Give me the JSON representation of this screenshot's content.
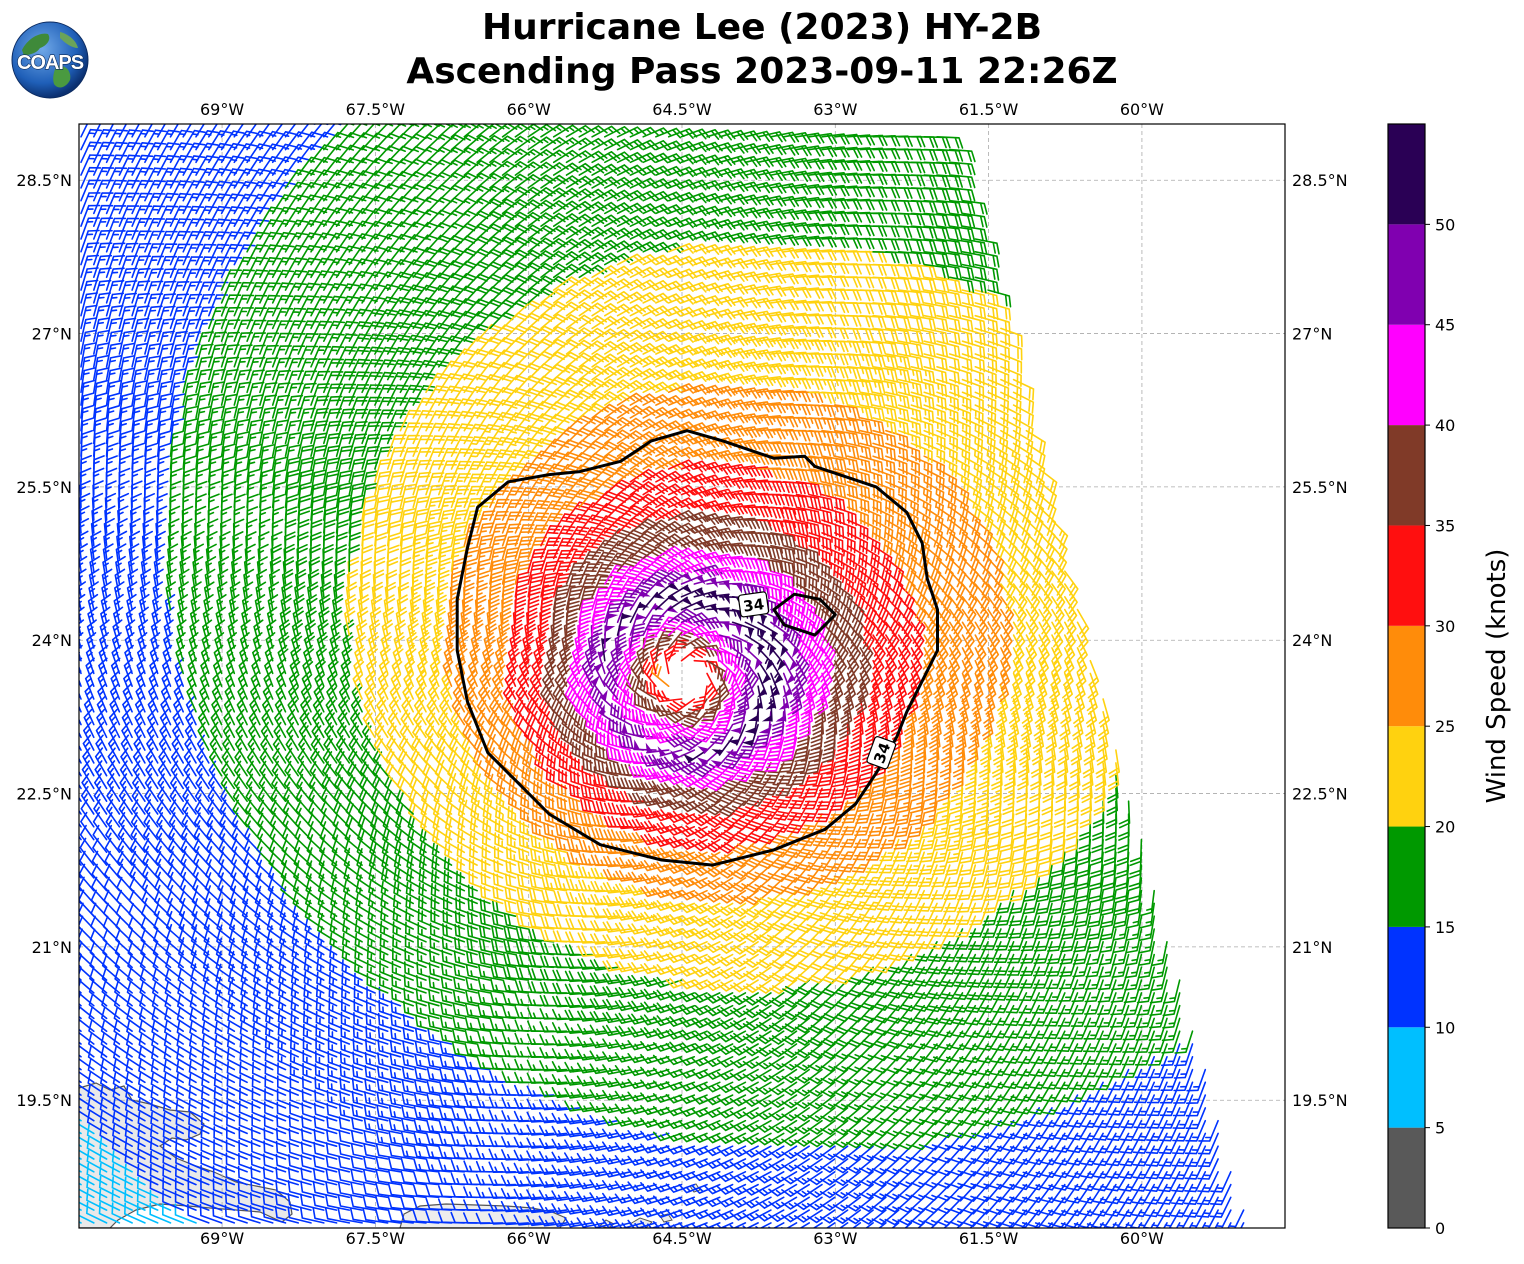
{
  "title": {
    "line1": "Hurricane Lee (2023) HY-2B",
    "line2": "Ascending Pass 2023-09-11 22:26Z"
  },
  "logo": {
    "text": "COAPS",
    "icon": "globe-icon"
  },
  "map": {
    "lon_range": [
      -70.4,
      -58.6
    ],
    "lat_range": [
      18.25,
      29.05
    ],
    "lon_ticks": [
      {
        "value": -69.0,
        "label": "69°W"
      },
      {
        "value": -67.5,
        "label": "67.5°W"
      },
      {
        "value": -66.0,
        "label": "66°W"
      },
      {
        "value": -64.5,
        "label": "64.5°W"
      },
      {
        "value": -63.0,
        "label": "63°W"
      },
      {
        "value": -61.5,
        "label": "61.5°W"
      },
      {
        "value": -60.0,
        "label": "60°W"
      }
    ],
    "lat_ticks": [
      {
        "value": 28.5,
        "label": "28.5°N"
      },
      {
        "value": 27.0,
        "label": "27°N"
      },
      {
        "value": 25.5,
        "label": "25.5°N"
      },
      {
        "value": 24.0,
        "label": "24°N"
      },
      {
        "value": 22.5,
        "label": "22.5°N"
      },
      {
        "value": 21.0,
        "label": "21°N"
      },
      {
        "value": 19.5,
        "label": "19.5°N"
      }
    ],
    "gridlines": true,
    "storm_center": {
      "lon": -64.45,
      "lat": 23.65
    },
    "swath": {
      "west_edge": [
        [
          -70.4,
          28.6
        ],
        [
          -70.4,
          18.25
        ]
      ],
      "east_edge": [
        [
          -61.9,
          28.95
        ],
        [
          -58.95,
          18.25
        ]
      ],
      "north_lat": 29.05
    },
    "contour": {
      "level": 34,
      "label": "34",
      "points": [
        [
          -64.45,
          26.05
        ],
        [
          -64.1,
          25.95
        ],
        [
          -63.6,
          25.78
        ],
        [
          -63.3,
          25.8
        ],
        [
          -63.2,
          25.7
        ],
        [
          -62.6,
          25.5
        ],
        [
          -62.3,
          25.25
        ],
        [
          -62.15,
          24.95
        ],
        [
          -62.1,
          24.6
        ],
        [
          -62.0,
          24.3
        ],
        [
          -62.0,
          23.9
        ],
        [
          -62.3,
          23.3
        ],
        [
          -62.4,
          23.05
        ],
        [
          -62.6,
          22.7
        ],
        [
          -62.8,
          22.4
        ],
        [
          -63.1,
          22.15
        ],
        [
          -63.6,
          21.95
        ],
        [
          -64.2,
          21.8
        ],
        [
          -64.7,
          21.85
        ],
        [
          -65.3,
          22.0
        ],
        [
          -65.8,
          22.3
        ],
        [
          -66.1,
          22.6
        ],
        [
          -66.4,
          22.9
        ],
        [
          -66.6,
          23.4
        ],
        [
          -66.7,
          23.9
        ],
        [
          -66.7,
          24.4
        ],
        [
          -66.6,
          24.9
        ],
        [
          -66.5,
          25.3
        ],
        [
          -66.2,
          25.55
        ],
        [
          -65.8,
          25.62
        ],
        [
          -65.5,
          25.65
        ],
        [
          -65.1,
          25.75
        ],
        [
          -64.8,
          25.95
        ],
        [
          -64.45,
          26.05
        ]
      ],
      "inner_points": [
        [
          -63.4,
          24.45
        ],
        [
          -63.15,
          24.4
        ],
        [
          -63.0,
          24.25
        ],
        [
          -63.2,
          24.05
        ],
        [
          -63.5,
          24.15
        ],
        [
          -63.6,
          24.3
        ],
        [
          -63.4,
          24.45
        ]
      ],
      "label_positions": [
        {
          "lon": -63.8,
          "lat": 24.35,
          "angle": -8
        },
        {
          "lon": -62.55,
          "lat": 22.9,
          "angle": -70
        }
      ]
    }
  },
  "colorbar": {
    "label": "Wind Speed (knots)",
    "bins": [
      {
        "min": 0,
        "max": 5,
        "color": "#595959"
      },
      {
        "min": 5,
        "max": 10,
        "color": "#00bfff"
      },
      {
        "min": 10,
        "max": 15,
        "color": "#0033ff"
      },
      {
        "min": 15,
        "max": 20,
        "color": "#009900"
      },
      {
        "min": 20,
        "max": 25,
        "color": "#ffd20f"
      },
      {
        "min": 25,
        "max": 30,
        "color": "#ff8c0a"
      },
      {
        "min": 30,
        "max": 35,
        "color": "#ff0f0f"
      },
      {
        "min": 35,
        "max": 40,
        "color": "#803a28"
      },
      {
        "min": 40,
        "max": 45,
        "color": "#ff00ff"
      },
      {
        "min": 45,
        "max": 50,
        "color": "#8000b0"
      },
      {
        "min": 50,
        "max": 55,
        "color": "#2a0055"
      }
    ],
    "ticks": [
      "0",
      "5",
      "10",
      "15",
      "20",
      "25",
      "30",
      "35",
      "40",
      "45",
      "50"
    ]
  },
  "chart_data": {
    "type": "wind-barb map",
    "field": "Wind Speed (knots)",
    "max_wind_knots": 52,
    "radius_of_max_wind_deg": 0.75,
    "contour_level_knots": 34
  }
}
